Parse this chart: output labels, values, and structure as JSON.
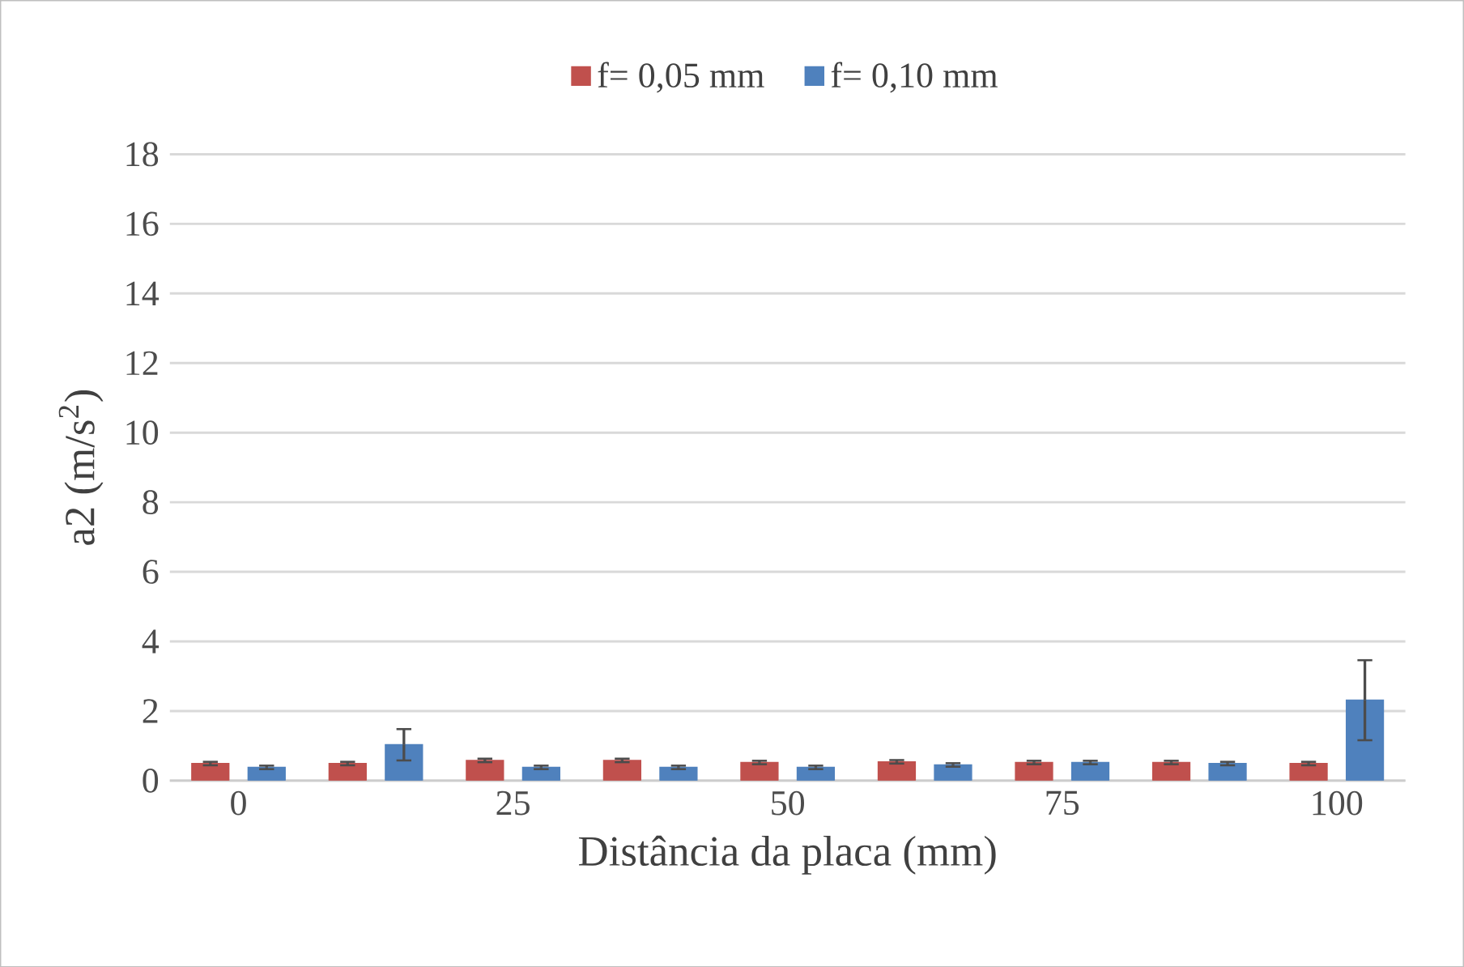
{
  "chart_data": {
    "type": "bar",
    "xlabel": "Distância da placa (mm)",
    "ylabel": "a2 (m/s$^{2}$)",
    "categories": [
      "0",
      null,
      "25",
      null,
      "50",
      null,
      "75",
      null,
      "100"
    ],
    "series": [
      {
        "name": "f= 0,05 mm",
        "color": "#c0504d",
        "values": [
          0.49,
          0.49,
          0.58,
          0.58,
          0.52,
          0.54,
          0.52,
          0.52,
          0.49
        ],
        "errors": [
          0.05,
          0.05,
          0.05,
          0.05,
          0.05,
          0.05,
          0.05,
          0.05,
          0.05
        ]
      },
      {
        "name": "f= 0,10 mm",
        "color": "#4f81bd",
        "values": [
          0.38,
          1.03,
          0.38,
          0.38,
          0.38,
          0.45,
          0.52,
          0.49,
          2.31
        ],
        "errors": [
          0.05,
          0.45,
          0.05,
          0.05,
          0.05,
          0.05,
          0.05,
          0.05,
          1.15
        ]
      }
    ],
    "ylim": [
      0,
      18
    ],
    "yticks": [
      0,
      2,
      4,
      6,
      8,
      10,
      12,
      14,
      16,
      18
    ],
    "grid": "y",
    "legend": "top"
  }
}
